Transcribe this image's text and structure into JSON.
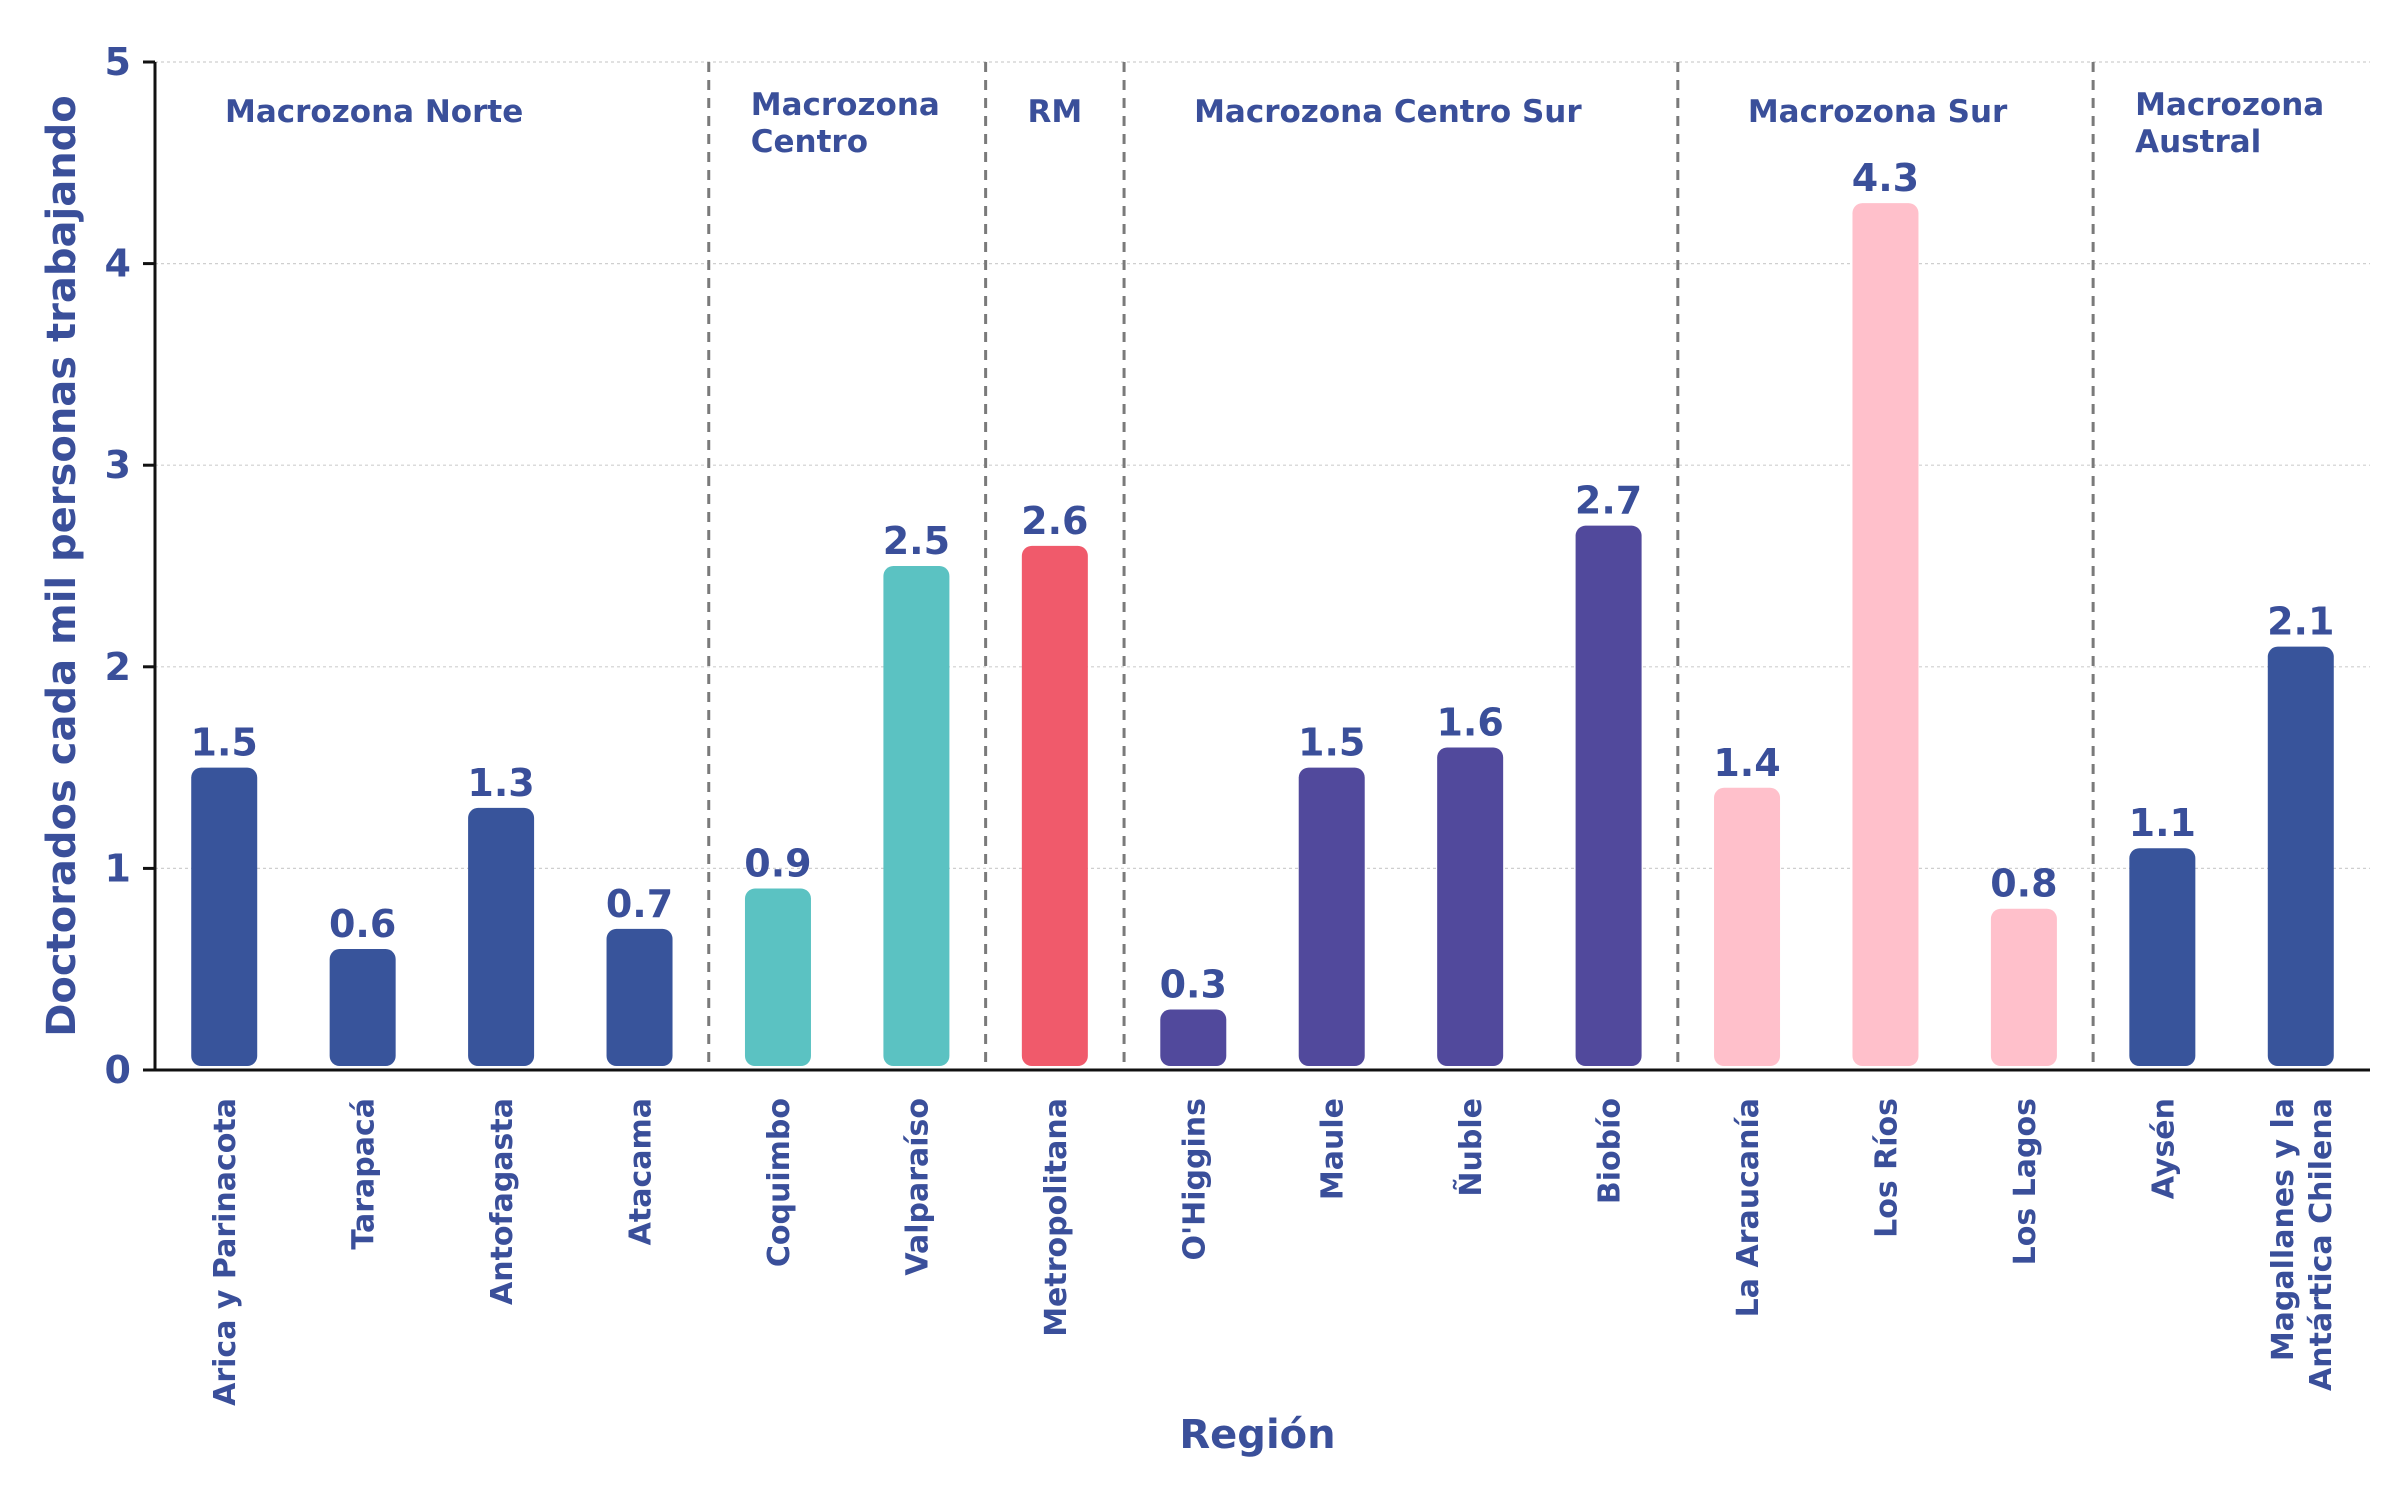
{
  "chart_data": {
    "type": "bar",
    "xlabel": "Región",
    "ylabel": "Doctorados cada mil personas trabajando",
    "ylim": [
      0,
      5
    ],
    "yticks": [
      "0",
      "1",
      "2",
      "3",
      "4",
      "5"
    ],
    "grid": "horizontal, dotted",
    "categories": [
      "Arica y Parinacota",
      "Tarapacá",
      "Antofagasta",
      "Atacama",
      "Coquimbo",
      "Valparaíso",
      "Metropolitana",
      "O'Higgins",
      "Maule",
      "Ñuble",
      "Biobío",
      "La Araucanía",
      "Los Ríos",
      "Los Lagos",
      "Aysén",
      "Magallanes y la Antártica Chilena"
    ],
    "values": [
      1.5,
      0.6,
      1.3,
      0.7,
      0.9,
      2.5,
      2.6,
      0.3,
      1.5,
      1.6,
      2.7,
      1.4,
      4.3,
      0.8,
      1.1,
      2.1
    ],
    "value_labels": [
      "1.5",
      "0.6",
      "1.3",
      "0.7",
      "0.9",
      "2.5",
      "2.6",
      "0.3",
      "1.5",
      "1.6",
      "2.7",
      "1.4",
      "4.3",
      "0.8",
      "1.1",
      "2.1"
    ],
    "groups": [
      {
        "name": "Macrozona Norte",
        "count": 4,
        "color": "#38549b"
      },
      {
        "name": "Macrozona Centro",
        "count": 2,
        "color": "#5bc2c2"
      },
      {
        "name": "RM",
        "count": 1,
        "color": "#f05a6b"
      },
      {
        "name": "Macrozona Centro Sur",
        "count": 4,
        "color": "#51499c"
      },
      {
        "name": "Macrozona Sur",
        "count": 3,
        "color": "#ffc0cb"
      },
      {
        "name": "Macrozona Austral",
        "count": 2,
        "color": "#38549b"
      }
    ],
    "text_color": "#3a4f9a"
  }
}
